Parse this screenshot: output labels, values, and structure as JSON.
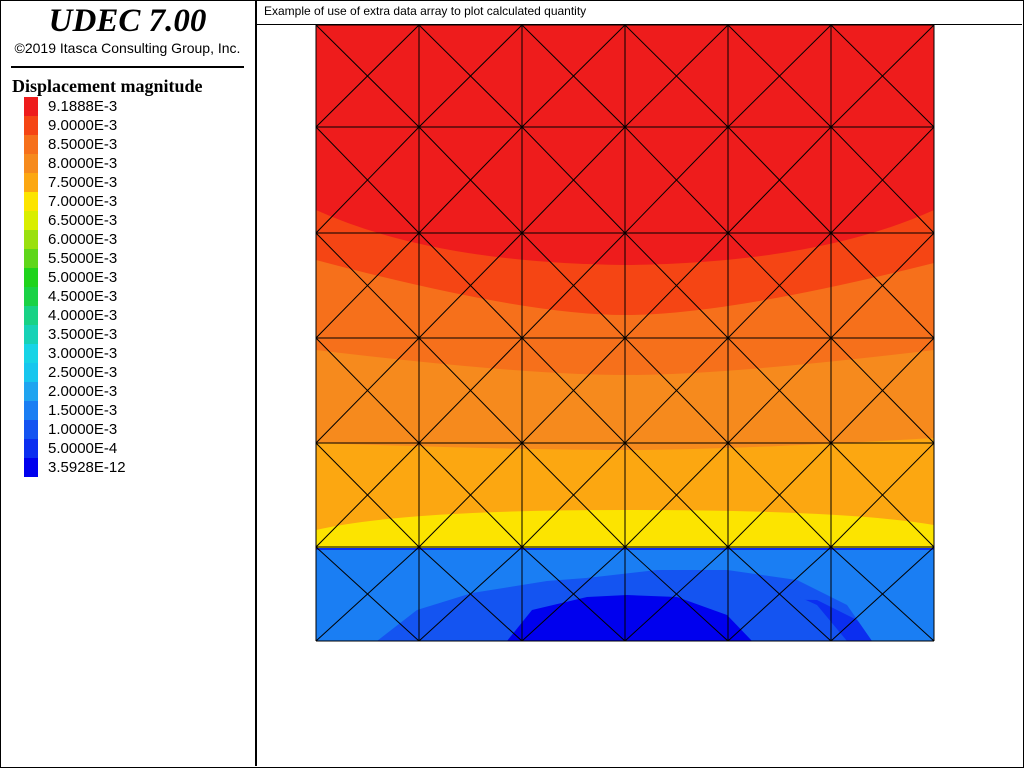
{
  "app": {
    "title": "UDEC 7.00",
    "copyright": "©2019 Itasca Consulting Group, Inc."
  },
  "legend": {
    "title": "Displacement magnitude",
    "items": [
      {
        "label": "9.1888E-3",
        "color": "#ee1c1c"
      },
      {
        "label": "9.0000E-3",
        "color": "#f54514"
      },
      {
        "label": "8.5000E-3",
        "color": "#f6701b"
      },
      {
        "label": "8.0000E-3",
        "color": "#f68a1d"
      },
      {
        "label": "7.5000E-3",
        "color": "#fca711"
      },
      {
        "label": "7.0000E-3",
        "color": "#fce400"
      },
      {
        "label": "6.5000E-3",
        "color": "#d9ee00"
      },
      {
        "label": "6.0000E-3",
        "color": "#9ae00f"
      },
      {
        "label": "5.5000E-3",
        "color": "#5fd61a"
      },
      {
        "label": "5.0000E-3",
        "color": "#1fd31b"
      },
      {
        "label": "4.5000E-3",
        "color": "#1ad245"
      },
      {
        "label": "4.0000E-3",
        "color": "#18d285"
      },
      {
        "label": "3.5000E-3",
        "color": "#17d2b6"
      },
      {
        "label": "3.0000E-3",
        "color": "#17d4e6"
      },
      {
        "label": "2.5000E-3",
        "color": "#17c6ee"
      },
      {
        "label": "2.0000E-3",
        "color": "#1fa4f0"
      },
      {
        "label": "1.5000E-3",
        "color": "#1a7ef3"
      },
      {
        "label": "1.0000E-3",
        "color": "#1454f1"
      },
      {
        "label": "5.0000E-4",
        "color": "#0b2ef0"
      },
      {
        "label": "3.5928E-12",
        "color": "#0000ee"
      }
    ]
  },
  "plot": {
    "title": "Example of use of extra data array to plot calculated quantity",
    "grid": {
      "columns": 6,
      "rows": 6,
      "diagonals": true
    }
  }
}
